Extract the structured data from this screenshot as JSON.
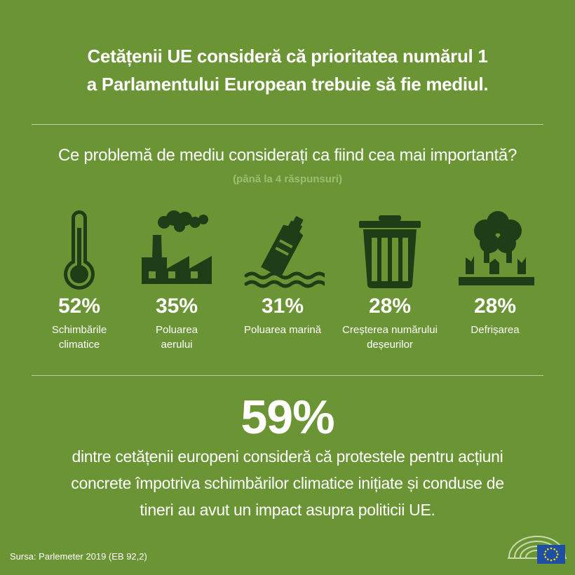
{
  "title": {
    "line1": "Cetățenii UE consideră că prioritatea numărul 1",
    "line2": "a Parlamentului European trebuie să fie mediul."
  },
  "question": "Ce problemă de mediu considerați ca fiind cea mai importantă?",
  "note": "(până la 4 răspunsuri)",
  "chart_data": {
    "type": "table",
    "title": "Ce problemă de mediu considerați ca fiind cea mai importantă?",
    "categories": [
      "Schimbările climatice",
      "Poluarea aerului",
      "Poluarea marină",
      "Creșterea numărului deșeurilor",
      "Defrișarea"
    ],
    "values": [
      52,
      35,
      31,
      28,
      28
    ],
    "unit": "%",
    "items": [
      {
        "pct": "52%",
        "label_lines": [
          "Schimbările",
          "climatice"
        ],
        "icon": "thermometer-icon"
      },
      {
        "pct": "35%",
        "label_lines": [
          "Poluarea",
          "aerului"
        ],
        "icon": "factory-icon"
      },
      {
        "pct": "31%",
        "label_lines": [
          "Poluarea marină"
        ],
        "icon": "bottle-in-water-icon"
      },
      {
        "pct": "28%",
        "label_lines": [
          "Creșterea numărului",
          "deșeurilor"
        ],
        "icon": "trash-bin-icon"
      },
      {
        "pct": "28%",
        "label_lines": [
          "Defrișarea"
        ],
        "icon": "trees-icon"
      }
    ]
  },
  "highlight": {
    "value": "59%",
    "text_lines": [
      "dintre cetățenii europeni consideră că protestele pentru acțiuni",
      "concrete împotriva schimbărilor climatice inițiate și conduse de",
      "tineri au avut un impact asupra politicii UE."
    ]
  },
  "source": "Sursa: Parlemeter 2019 (EB 92,2)",
  "colors": {
    "background": "#6b9535",
    "icon": "#1f3d16",
    "note": "#9cbd72",
    "text": "#ffffff",
    "eu_blue": "#1f4fa3",
    "eu_gold": "#ffdd00"
  },
  "logo": {
    "name": "european-parliament-logo-icon"
  }
}
